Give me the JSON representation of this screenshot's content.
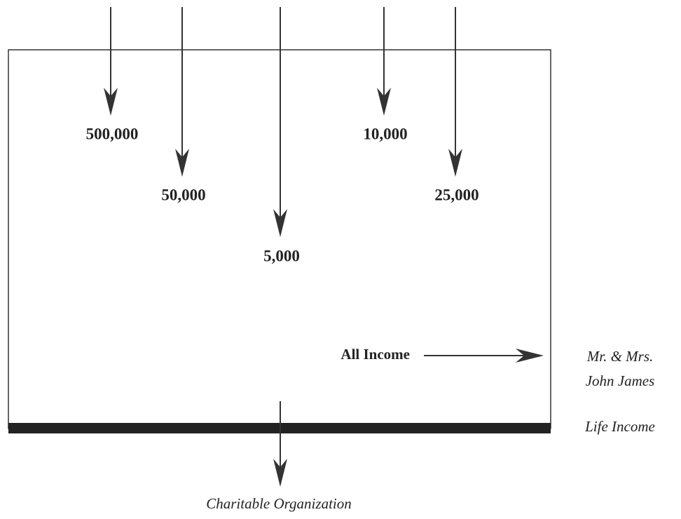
{
  "inputs": [
    {
      "label": "500,000"
    },
    {
      "label": "50,000"
    },
    {
      "label": "5,000"
    },
    {
      "label": "10,000"
    },
    {
      "label": "25,000"
    }
  ],
  "income": {
    "label": "All Income"
  },
  "recipient": {
    "lines": [
      "Mr. & Mrs.",
      "John James"
    ]
  },
  "life_income": "Life Income",
  "remainder": "Charitable Organization"
}
